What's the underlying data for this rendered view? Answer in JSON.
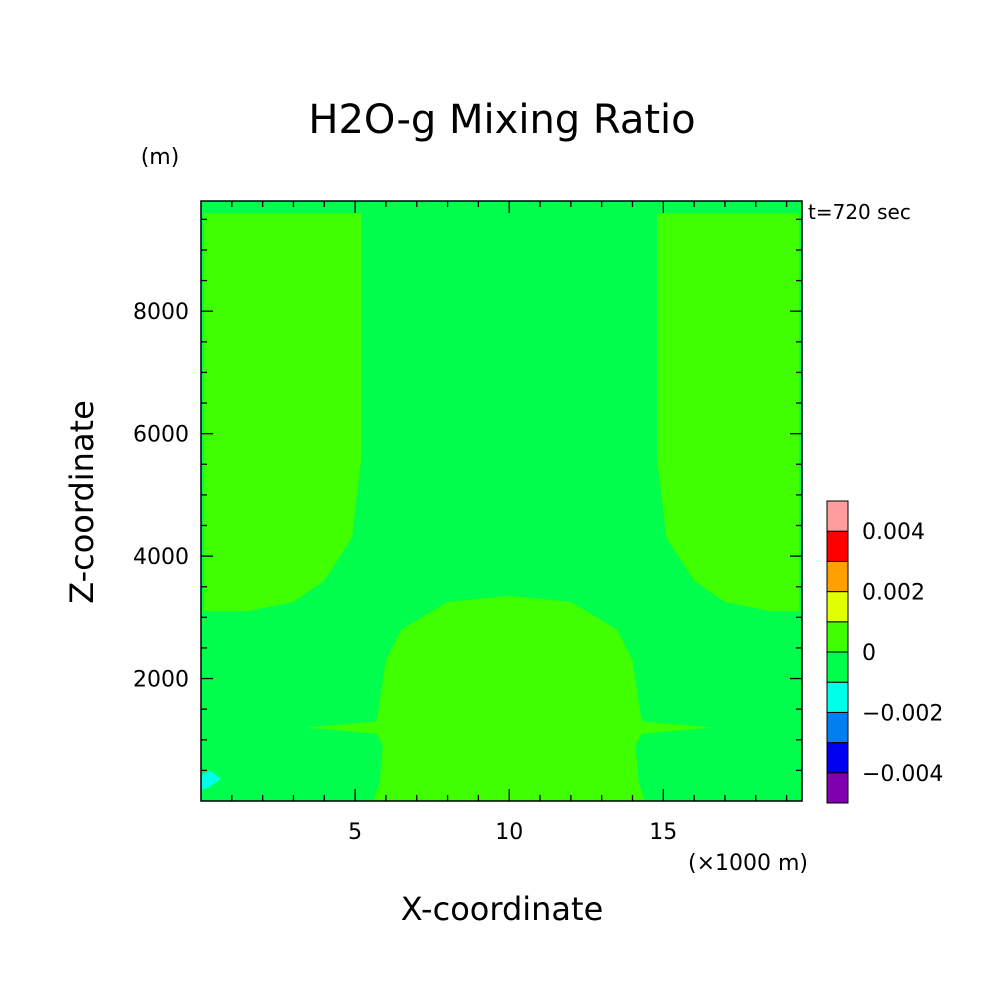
{
  "chart_data": {
    "type": "contour",
    "title": "H2O-g Mixing Ratio",
    "time_label": "t=720 sec",
    "xlabel": "X-coordinate",
    "x_unit": "(×1000 m)",
    "ylabel": "Z-coordinate",
    "y_unit": "(m)",
    "xlim": [
      0,
      19.5
    ],
    "ylim": [
      0,
      9800
    ],
    "x_ticks": [
      5,
      10,
      15
    ],
    "x_tick_labels": [
      "5",
      "10",
      "15"
    ],
    "y_ticks": [
      2000,
      4000,
      6000,
      8000
    ],
    "y_tick_labels": [
      "2000",
      "4000",
      "6000",
      "8000"
    ],
    "background_level_color": "#00ff4c",
    "colorbar": {
      "levels": [
        -0.005,
        -0.004,
        -0.003,
        -0.002,
        -0.001,
        0,
        0.001,
        0.002,
        0.003,
        0.004,
        0.005
      ],
      "colors": [
        "#8000b0",
        "#0000f0",
        "#0080f0",
        "#00ffe8",
        "#00ff4c",
        "#40ff00",
        "#e0ff00",
        "#ffa000",
        "#ff0000",
        "#ff9c9c"
      ],
      "tick_values": [
        -0.004,
        -0.002,
        0,
        0.002,
        0.004
      ],
      "tick_labels": [
        "−0.004",
        "−0.002",
        "0",
        "0.002",
        "0.004"
      ]
    },
    "regions": [
      {
        "name": "upper-left-positive-region",
        "level_range": [
          0,
          0.001
        ],
        "color": "#40ff00",
        "outline": [
          [
            0.1,
            3100
          ],
          [
            0.1,
            9600
          ],
          [
            5.2,
            9600
          ],
          [
            5.2,
            5600
          ],
          [
            4.9,
            4300
          ],
          [
            4,
            3600
          ],
          [
            3,
            3250
          ],
          [
            1.5,
            3100
          ]
        ]
      },
      {
        "name": "upper-right-positive-region",
        "level_range": [
          0,
          0.001
        ],
        "color": "#40ff00",
        "outline": [
          [
            19.4,
            3100
          ],
          [
            19.4,
            9600
          ],
          [
            14.8,
            9600
          ],
          [
            14.8,
            5600
          ],
          [
            15.1,
            4300
          ],
          [
            16,
            3600
          ],
          [
            17,
            3250
          ],
          [
            18.5,
            3100
          ]
        ]
      },
      {
        "name": "lower-center-positive-region",
        "level_range": [
          0,
          0.001
        ],
        "color": "#40ff00",
        "outline": [
          [
            5.7,
            1300
          ],
          [
            6,
            2300
          ],
          [
            6.5,
            2800
          ],
          [
            8,
            3250
          ],
          [
            10,
            3350
          ],
          [
            12,
            3250
          ],
          [
            13.5,
            2800
          ],
          [
            14,
            2300
          ],
          [
            14.3,
            1300
          ],
          [
            16.6,
            1200
          ],
          [
            14.3,
            1100
          ],
          [
            14.1,
            900
          ],
          [
            14.2,
            300
          ],
          [
            14.4,
            0
          ],
          [
            5.6,
            0
          ],
          [
            5.8,
            300
          ],
          [
            5.9,
            900
          ],
          [
            5.7,
            1100
          ],
          [
            3.4,
            1200
          ]
        ]
      },
      {
        "name": "lower-left-negative-region",
        "level_range": [
          -0.002,
          -0.001
        ],
        "color": "#00ffe8",
        "outline": [
          [
            0,
            180
          ],
          [
            0,
            420
          ],
          [
            0.3,
            500
          ],
          [
            0.65,
            360
          ],
          [
            0.25,
            220
          ]
        ]
      }
    ]
  }
}
